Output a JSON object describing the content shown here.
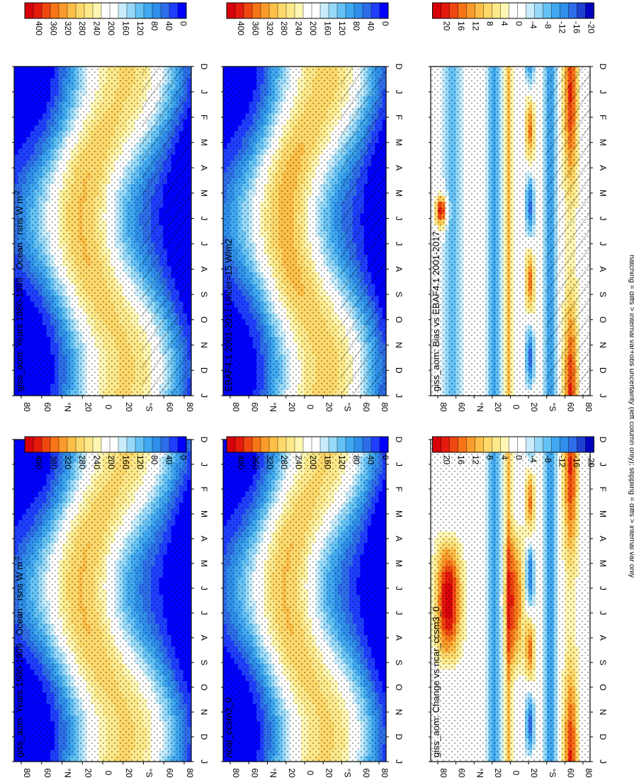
{
  "figure": {
    "footnote": "hatching = diffs > internal var+obs uncertainty (left column only); stippling = diffs > internal var only",
    "months": [
      "D",
      "J",
      "F",
      "M",
      "A",
      "M",
      "J",
      "J",
      "A",
      "S",
      "O",
      "N",
      "D",
      "J"
    ],
    "lat_labels": [
      "80",
      "60",
      "°N",
      "20",
      "0",
      "20",
      "°S",
      "60",
      "80"
    ],
    "orientation": "rotated 90° clockwise (months along right axis, latitudes along bottom axis)"
  },
  "colors": {
    "abs_scale": [
      "#0000ff",
      "#1f3fff",
      "#2d6de8",
      "#2f8fea",
      "#40a8f0",
      "#66c2f4",
      "#98d9f8",
      "#c8ecfb",
      "#ffffff",
      "#ffffff",
      "#fff6b3",
      "#fde98a",
      "#fdd86a",
      "#fdbf48",
      "#fb9b2b",
      "#f67518",
      "#ef4710",
      "#e41a0c",
      "#d7000a"
    ],
    "diff_scale": [
      "#0000c0",
      "#1f3fd0",
      "#2d6de8",
      "#2f8fea",
      "#40a8f0",
      "#66c2f4",
      "#98d9f8",
      "#c8ecfb",
      "#ffffff",
      "#ffffff",
      "#fff6b3",
      "#fde98a",
      "#fdd86a",
      "#fdbf48",
      "#fb9b2b",
      "#f67518",
      "#ef4710",
      "#e41a0c",
      "#d7000a"
    ]
  },
  "chart_data": [
    {
      "type": "heatmap",
      "panel": "A1",
      "title": "giss_aom: Years 1980-1999 : Ocean : rsns W m",
      "title_sup": "-2",
      "cbar_labels": [
        "400",
        "360",
        "320",
        "280",
        "240",
        "200",
        "160",
        "120",
        "80",
        "40",
        "0"
      ],
      "x": "month",
      "y": "latitude",
      "ylim": [
        -90,
        90
      ],
      "stippling": true,
      "hatching": true
    },
    {
      "type": "heatmap",
      "panel": "A2",
      "title": "giss_aom: Years 1980-1999 : Ocean : rsns W m",
      "title_sup": "-2",
      "cbar_labels": [
        "400",
        "360",
        "320",
        "280",
        "240",
        "200",
        "160",
        "120",
        "80",
        "40",
        "0"
      ],
      "x": "month",
      "y": "latitude",
      "ylim": [
        -90,
        90
      ],
      "stippling": true,
      "hatching": false
    },
    {
      "type": "heatmap",
      "panel": "B1",
      "title": "EBAF4.1 2001-2017 Uncer=15 W/m2",
      "cbar_labels": [
        "400",
        "360",
        "320",
        "280",
        "240",
        "200",
        "160",
        "120",
        "80",
        "40",
        "0"
      ],
      "x": "month",
      "y": "latitude",
      "ylim": [
        -90,
        90
      ],
      "stippling": true,
      "hatching": true
    },
    {
      "type": "heatmap",
      "panel": "B2",
      "title": "ncar_ccsm3_0",
      "cbar_labels": [
        "400",
        "360",
        "320",
        "280",
        "240",
        "200",
        "160",
        "120",
        "80",
        "40",
        "0"
      ],
      "x": "month",
      "y": "latitude",
      "ylim": [
        -90,
        90
      ],
      "stippling": true,
      "hatching": false
    },
    {
      "type": "heatmap",
      "panel": "C1",
      "title": "giss_aom: Bias vs EBAF4.1 2001-2017",
      "cbar_labels": [
        "20",
        "16",
        "12",
        "8",
        "4",
        "0",
        "-4",
        "-8",
        "-12",
        "-16",
        "-20"
      ],
      "x": "month",
      "y": "latitude",
      "ylim": [
        -90,
        90
      ],
      "stippling": true,
      "hatching": true
    },
    {
      "type": "heatmap",
      "panel": "C2",
      "title": "giss_aom: Change vs ncar_ccsm3_0",
      "cbar_labels": [
        "20",
        "16",
        "12",
        "8",
        "4",
        "0",
        "-4",
        "-8",
        "-12",
        "-16",
        "-20"
      ],
      "x": "month",
      "y": "latitude",
      "ylim": [
        -90,
        90
      ],
      "stippling": true,
      "hatching": false
    }
  ]
}
